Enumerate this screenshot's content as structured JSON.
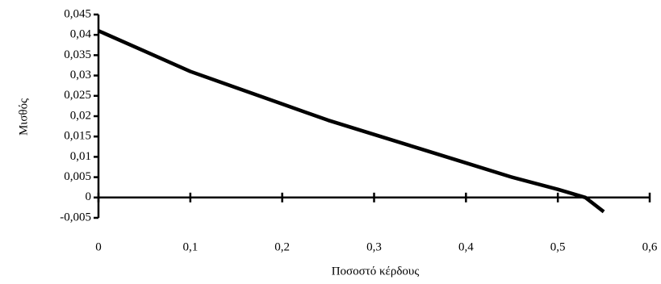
{
  "chart_data": {
    "type": "line",
    "x_label": "Ποσοστό κέρδους",
    "y_label": "Μισθός",
    "x": [
      0,
      0.05,
      0.1,
      0.15,
      0.2,
      0.25,
      0.3,
      0.35,
      0.4,
      0.45,
      0.5,
      0.53,
      0.55
    ],
    "series": [
      {
        "name": "Μισθός",
        "color": "#000000",
        "values": [
          0.041,
          0.036,
          0.031,
          0.027,
          0.023,
          0.019,
          0.0155,
          0.012,
          0.0085,
          0.005,
          0.002,
          0,
          -0.0035
        ]
      }
    ],
    "xlim": [
      0,
      0.6
    ],
    "xticks": [
      0,
      {
        "value": 0.1,
        "label": "0,1"
      },
      {
        "value": 0.2,
        "label": "0,2"
      },
      {
        "value": 0.3,
        "label": "0,3"
      },
      {
        "value": 0.4,
        "label": "0,4"
      },
      {
        "value": 0.5,
        "label": "0,5"
      },
      {
        "value": 0.6,
        "label": "0,6"
      }
    ],
    "ylim": [
      -0.005,
      0.045
    ],
    "yticks": [
      {
        "value": -0.005,
        "label": "-0,005"
      },
      0,
      {
        "value": 0.005,
        "label": "0,005"
      },
      {
        "value": 0.01,
        "label": "0,01"
      },
      {
        "value": 0.015,
        "label": "0,015"
      },
      {
        "value": 0.02,
        "label": "0,02"
      },
      {
        "value": 0.025,
        "label": "0,025"
      },
      {
        "value": 0.03,
        "label": "0,03"
      },
      {
        "value": 0.035,
        "label": "0,035"
      },
      {
        "value": 0.04,
        "label": "0,04"
      },
      {
        "value": 0.045,
        "label": "0,045"
      }
    ],
    "grid": false
  }
}
